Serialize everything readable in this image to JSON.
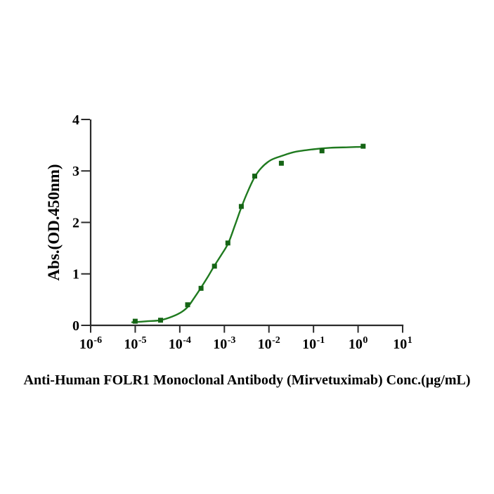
{
  "figure": {
    "background": "#ffffff"
  },
  "chart_data": {
    "type": "scatter",
    "title": "",
    "xlabel": "Anti-Human FOLR1 Monoclonal Antibody (Mirvetuximab) Conc.(µg/mL)",
    "ylabel": "Abs.(OD.450nm)",
    "x_scale": "log10",
    "xlim_log": [
      -6,
      1
    ],
    "ylim": [
      0,
      4
    ],
    "grid": false,
    "legend": "none",
    "x_tick_labels": [
      {
        "base": "10",
        "exp": "-6"
      },
      {
        "base": "10",
        "exp": "-5"
      },
      {
        "base": "10",
        "exp": "-4"
      },
      {
        "base": "10",
        "exp": "-3"
      },
      {
        "base": "10",
        "exp": "-2"
      },
      {
        "base": "10",
        "exp": "-1"
      },
      {
        "base": "10",
        "exp": "0"
      },
      {
        "base": "10",
        "exp": "1"
      }
    ],
    "x_tick_exponents": [
      -6,
      -5,
      -4,
      -3,
      -2,
      -1,
      0,
      1
    ],
    "y_tick_labels": [
      "0",
      "1",
      "2",
      "3",
      "4"
    ],
    "y_ticks": [
      0,
      1,
      2,
      3,
      4
    ],
    "colors": {
      "curve": "#1f7a1f",
      "marker": "#156415",
      "axis": "#2b2b2b",
      "text": "#000000"
    },
    "series": [
      {
        "name": "Anti-Human FOLR1 Monoclonal Antibody (Mirvetuximab)",
        "marker": "square",
        "points": [
          {
            "conc": 1e-05,
            "od": 0.08
          },
          {
            "conc": 3.7e-05,
            "od": 0.1
          },
          {
            "conc": 0.00015,
            "od": 0.4
          },
          {
            "conc": 0.0003,
            "od": 0.72
          },
          {
            "conc": 0.0006,
            "od": 1.15
          },
          {
            "conc": 0.0012,
            "od": 1.6
          },
          {
            "conc": 0.0024,
            "od": 2.31
          },
          {
            "conc": 0.0048,
            "od": 2.9
          },
          {
            "conc": 0.019,
            "od": 3.15
          },
          {
            "conc": 0.155,
            "od": 3.39
          },
          {
            "conc": 1.3,
            "od": 3.48
          }
        ]
      }
    ],
    "fit_curve": [
      [
        -5.07,
        0.06
      ],
      [
        -4.72,
        0.08
      ],
      [
        -4.44,
        0.1
      ],
      [
        -4.17,
        0.17
      ],
      [
        -3.96,
        0.26
      ],
      [
        -3.81,
        0.37
      ],
      [
        -3.68,
        0.53
      ],
      [
        -3.54,
        0.71
      ],
      [
        -3.38,
        0.93
      ],
      [
        -3.23,
        1.15
      ],
      [
        -3.06,
        1.38
      ],
      [
        -2.91,
        1.6
      ],
      [
        -2.76,
        1.95
      ],
      [
        -2.62,
        2.29
      ],
      [
        -2.48,
        2.59
      ],
      [
        -2.32,
        2.88
      ],
      [
        -2.17,
        3.06
      ],
      [
        -1.96,
        3.21
      ],
      [
        -1.72,
        3.29
      ],
      [
        -1.41,
        3.37
      ],
      [
        -1.01,
        3.42
      ],
      [
        -0.62,
        3.45
      ],
      [
        -0.22,
        3.46
      ],
      [
        0.13,
        3.47
      ]
    ]
  }
}
